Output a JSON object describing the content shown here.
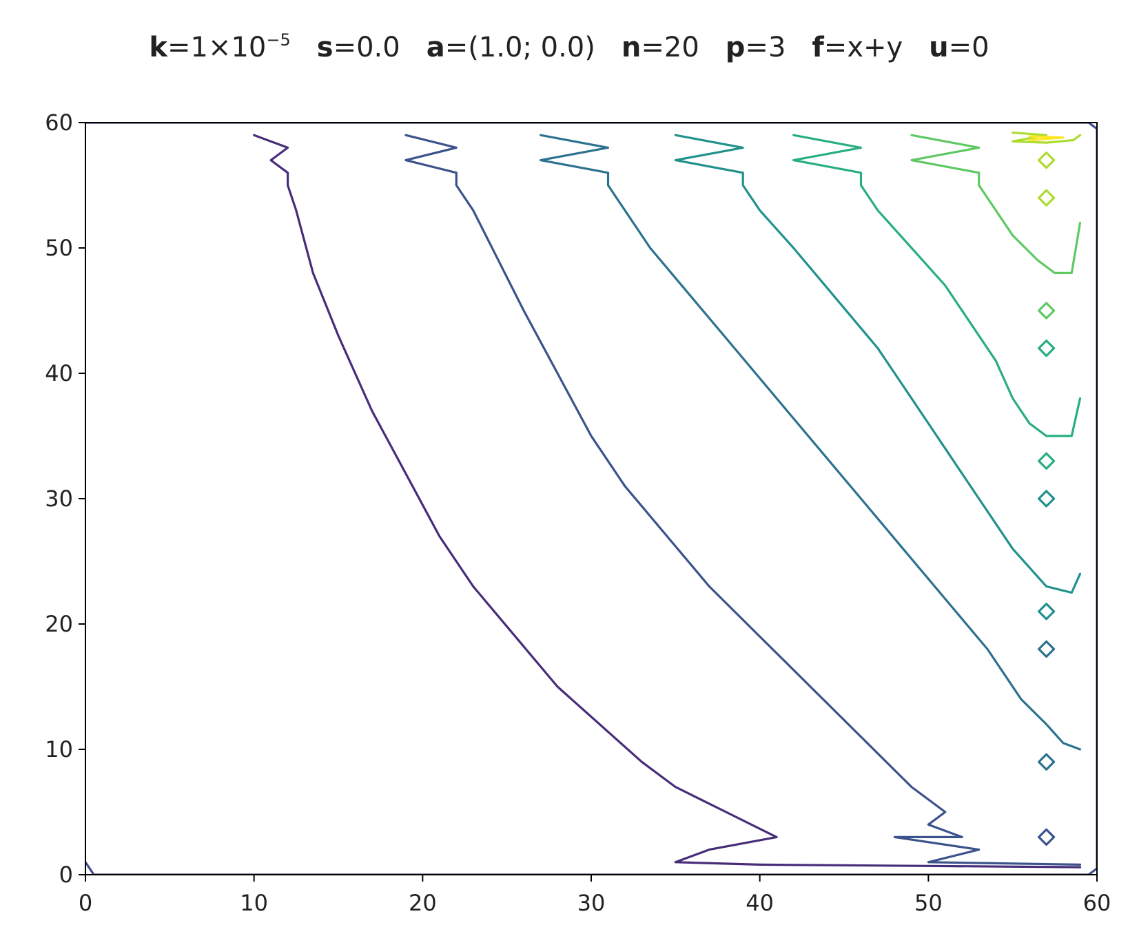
{
  "title_parts": [
    {
      "key": "k",
      "value": "=1×10",
      "sup": "−5"
    },
    {
      "key": "s",
      "value": "=0.0"
    },
    {
      "key": "a",
      "value": "=(1.0; 0.0)"
    },
    {
      "key": "n",
      "value": "=20"
    },
    {
      "key": "p",
      "value": "=3"
    },
    {
      "key": "f",
      "value": "=x+y"
    },
    {
      "key": "u",
      "value": "=0"
    }
  ],
  "chart_data": {
    "type": "contour",
    "title": "k=1×10⁻⁵  s=0.0  a=(1.0; 0.0)  n=20  p=3  f=x+y  u=0",
    "xlabel": "",
    "ylabel": "",
    "xlim": [
      0,
      60
    ],
    "ylim": [
      0,
      60
    ],
    "x_ticks": [
      0,
      10,
      20,
      30,
      40,
      50,
      60
    ],
    "y_ticks": [
      0,
      10,
      20,
      30,
      40,
      50,
      60
    ],
    "grid": false,
    "legend": "none",
    "colormap": "viridis",
    "series": [
      {
        "color": "#472c7a",
        "points": [
          [
            10,
            59
          ],
          [
            12,
            58
          ],
          [
            11,
            57
          ],
          [
            12,
            56
          ],
          [
            12,
            55
          ],
          [
            12.5,
            53
          ],
          [
            13.5,
            48
          ],
          [
            15,
            43
          ],
          [
            17,
            37
          ],
          [
            19,
            32
          ],
          [
            21,
            27
          ],
          [
            23,
            23
          ],
          [
            25.5,
            19
          ],
          [
            28,
            15
          ],
          [
            30.5,
            12
          ],
          [
            33,
            9
          ],
          [
            35,
            7
          ],
          [
            38,
            5
          ],
          [
            41,
            3
          ],
          [
            37,
            2
          ],
          [
            35,
            1
          ],
          [
            40,
            0.8
          ],
          [
            50,
            0.7
          ],
          [
            59,
            0.6
          ]
        ]
      },
      {
        "color": "#3b528b",
        "points": [
          [
            19,
            59
          ],
          [
            22,
            58
          ],
          [
            19,
            57
          ],
          [
            22,
            56
          ],
          [
            22,
            55
          ],
          [
            23,
            53
          ],
          [
            24.5,
            49
          ],
          [
            26,
            45
          ],
          [
            28,
            40
          ],
          [
            30,
            35
          ],
          [
            32,
            31
          ],
          [
            34.5,
            27
          ],
          [
            37,
            23
          ],
          [
            40,
            19
          ],
          [
            43,
            15
          ],
          [
            46,
            11
          ],
          [
            49,
            7
          ],
          [
            51,
            5
          ],
          [
            50,
            4
          ],
          [
            52,
            3
          ],
          [
            48,
            3
          ],
          [
            53,
            2
          ],
          [
            50,
            1
          ],
          [
            59,
            0.8
          ]
        ]
      },
      {
        "color": "#2c728e",
        "points": [
          [
            27,
            59
          ],
          [
            31,
            58
          ],
          [
            27,
            57
          ],
          [
            31,
            56
          ],
          [
            31,
            55
          ],
          [
            32,
            53
          ],
          [
            33.5,
            50
          ],
          [
            36,
            46
          ],
          [
            38.5,
            42
          ],
          [
            41,
            38
          ],
          [
            43.5,
            34
          ],
          [
            46,
            30
          ],
          [
            48.5,
            26
          ],
          [
            51,
            22
          ],
          [
            53.5,
            18
          ],
          [
            55.5,
            14
          ],
          [
            57,
            12
          ],
          [
            58,
            10.5
          ],
          [
            59,
            10
          ]
        ]
      },
      {
        "color": "#21918c",
        "points": [
          [
            35,
            59
          ],
          [
            39,
            58
          ],
          [
            35,
            57
          ],
          [
            39,
            56
          ],
          [
            39,
            55
          ],
          [
            40,
            53
          ],
          [
            42,
            50
          ],
          [
            44.5,
            46
          ],
          [
            47,
            42
          ],
          [
            49,
            38
          ],
          [
            51,
            34
          ],
          [
            53,
            30
          ],
          [
            55,
            26
          ],
          [
            57,
            23
          ],
          [
            58.5,
            22.5
          ],
          [
            59,
            24
          ]
        ]
      },
      {
        "color": "#28ae80",
        "points": [
          [
            42,
            59
          ],
          [
            46,
            58
          ],
          [
            42,
            57
          ],
          [
            46,
            56
          ],
          [
            46,
            55
          ],
          [
            47,
            53
          ],
          [
            49,
            50
          ],
          [
            51,
            47
          ],
          [
            52.5,
            44
          ],
          [
            54,
            41
          ],
          [
            55,
            38
          ],
          [
            56,
            36
          ],
          [
            57,
            35
          ],
          [
            58.5,
            35
          ],
          [
            59,
            38
          ]
        ]
      },
      {
        "color": "#5ec962",
        "points": [
          [
            49,
            59
          ],
          [
            53,
            58
          ],
          [
            49,
            57
          ],
          [
            53,
            56
          ],
          [
            53,
            55
          ],
          [
            54,
            53
          ],
          [
            55,
            51
          ],
          [
            56.5,
            49
          ],
          [
            57.5,
            48
          ],
          [
            58.5,
            48
          ],
          [
            59,
            52
          ]
        ]
      },
      {
        "color": "#addc30",
        "points": [
          [
            55,
            59.2
          ],
          [
            57,
            59
          ],
          [
            55,
            58.5
          ],
          [
            57,
            58.4
          ],
          [
            58.6,
            58.6
          ],
          [
            59,
            59
          ]
        ]
      },
      {
        "color": "#fde725",
        "points": [
          [
            56,
            58.9
          ],
          [
            58,
            58.8
          ],
          [
            56,
            58.6
          ]
        ]
      },
      {
        "color": "#3e4a89",
        "points": [
          [
            0,
            60
          ],
          [
            59.5,
            60
          ],
          [
            60,
            59.5
          ],
          [
            60,
            0.5
          ],
          [
            59.5,
            0
          ],
          [
            0.5,
            0
          ],
          [
            0,
            1
          ]
        ]
      }
    ],
    "islands": [
      {
        "x": 57,
        "y": 57,
        "color": "#addc30"
      },
      {
        "x": 57,
        "y": 54,
        "color": "#addc30"
      },
      {
        "x": 57,
        "y": 45,
        "color": "#5ec962"
      },
      {
        "x": 57,
        "y": 42,
        "color": "#28ae80"
      },
      {
        "x": 57,
        "y": 33,
        "color": "#28ae80"
      },
      {
        "x": 57,
        "y": 30,
        "color": "#21918c"
      },
      {
        "x": 57,
        "y": 21,
        "color": "#21918c"
      },
      {
        "x": 57,
        "y": 18,
        "color": "#2c728e"
      },
      {
        "x": 57,
        "y": 9,
        "color": "#2c728e"
      },
      {
        "x": 57,
        "y": 3,
        "color": "#3b528b"
      }
    ]
  }
}
